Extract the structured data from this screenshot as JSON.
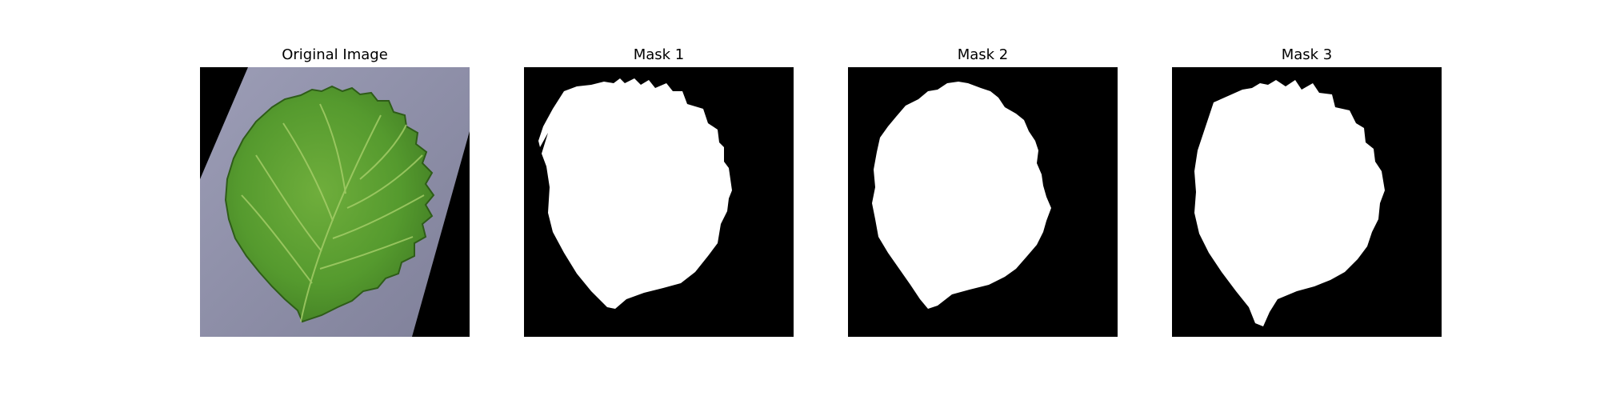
{
  "panels": [
    {
      "title": "Original Image"
    },
    {
      "title": "Mask 1"
    },
    {
      "title": "Mask 2"
    },
    {
      "title": "Mask 3"
    }
  ],
  "colors": {
    "background": "#000000",
    "mask": "#ffffff",
    "paper": "#8e8fa8",
    "leaf_dark": "#3f7a22",
    "leaf_light": "#6fae3c",
    "vein": "#a7cf6a"
  }
}
